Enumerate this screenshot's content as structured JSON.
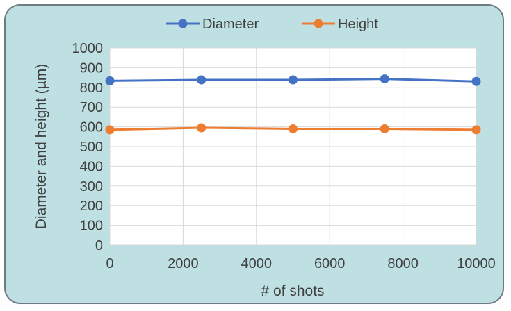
{
  "colors": {
    "card_background": "#bfe0e3",
    "card_border": "#6e7b83",
    "plot_background": "#ffffff",
    "gridline": "#d9d9d9",
    "diameter": "#4472c4",
    "height": "#ed7d31"
  },
  "chart_data": {
    "type": "line",
    "title": "",
    "xlabel": "# of shots",
    "ylabel": "Diameter and height (µm)",
    "x": [
      0,
      2500,
      5000,
      7500,
      10000
    ],
    "series": [
      {
        "name": "Diameter",
        "values": [
          833,
          838,
          838,
          843,
          830
        ]
      },
      {
        "name": "Height",
        "values": [
          585,
          595,
          590,
          590,
          585
        ]
      }
    ],
    "xlim": [
      0,
      10000
    ],
    "ylim": [
      0,
      1000
    ],
    "x_ticks": [
      "0",
      "2000",
      "4000",
      "6000",
      "8000",
      "10000"
    ],
    "y_ticks": [
      "0",
      "100",
      "200",
      "300",
      "400",
      "500",
      "600",
      "700",
      "800",
      "900",
      "1000"
    ],
    "grid": true,
    "legend": "top"
  }
}
